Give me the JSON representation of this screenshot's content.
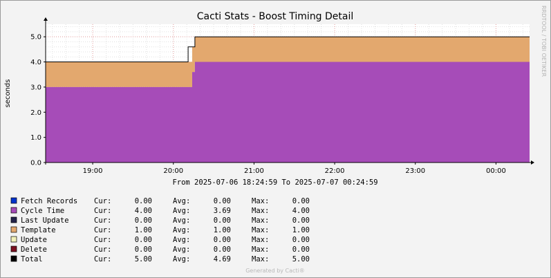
{
  "chart_data": {
    "type": "area",
    "title": "Cacti Stats - Boost Timing Detail",
    "ylabel": "seconds",
    "ylim": [
      0,
      5.5
    ],
    "yticks": [
      "0.0",
      "1.0",
      "2.0",
      "3.0",
      "4.0",
      "5.0"
    ],
    "xticks": [
      "19:00",
      "20:00",
      "21:00",
      "22:00",
      "23:00",
      "00:00"
    ],
    "x_range": [
      "2025-07-06 18:24:59",
      "2025-07-07 00:24:59"
    ],
    "grid": true,
    "date_range": "From 2025-07-06 18:24:59 To 2025-07-07 00:24:59",
    "watermark": "RRDTOOL / TOBI OETIKER",
    "footer": "Generated by Cacti®",
    "series": [
      {
        "name": "Cycle Time",
        "color": "#a64cb8",
        "x": [
          "18:24:59",
          "20:09",
          "20:11",
          "20:14",
          "20:16",
          "00:24:59"
        ],
        "values": [
          3.0,
          3.0,
          3.0,
          3.6,
          4.0,
          4.0
        ]
      },
      {
        "name": "Template",
        "color": "#e3a86e",
        "x": [
          "18:24:59",
          "20:09",
          "20:11",
          "20:14",
          "20:16",
          "00:24:59"
        ],
        "values": [
          1.0,
          1.0,
          1.0,
          1.0,
          1.0,
          1.0
        ]
      },
      {
        "name": "Total",
        "color": "#000000",
        "x": [
          "18:24:59",
          "20:09",
          "20:11",
          "20:14",
          "20:16",
          "00:24:59"
        ],
        "values": [
          4.0,
          4.0,
          4.6,
          4.6,
          5.0,
          5.0
        ]
      }
    ],
    "legend": [
      {
        "name": "Fetch Records",
        "color": "#0033cc",
        "cur_label": "Cur:",
        "cur": "0.00",
        "avg_label": "Avg:",
        "avg": "0.00",
        "max_label": "Max:",
        "max": "0.00"
      },
      {
        "name": "Cycle Time",
        "color": "#a64cb8",
        "cur_label": "Cur:",
        "cur": "4.00",
        "avg_label": "Avg:",
        "avg": "3.69",
        "max_label": "Max:",
        "max": "4.00"
      },
      {
        "name": "Last Update",
        "color": "#23234a",
        "cur_label": "Cur:",
        "cur": "0.00",
        "avg_label": "Avg:",
        "avg": "0.00",
        "max_label": "Max:",
        "max": "0.00"
      },
      {
        "name": "Template",
        "color": "#e3a86e",
        "cur_label": "Cur:",
        "cur": "1.00",
        "avg_label": "Avg:",
        "avg": "1.00",
        "max_label": "Max:",
        "max": "1.00"
      },
      {
        "name": "Update",
        "color": "#f2f0b8",
        "cur_label": "Cur:",
        "cur": "0.00",
        "avg_label": "Avg:",
        "avg": "0.00",
        "max_label": "Max:",
        "max": "0.00"
      },
      {
        "name": "Delete",
        "color": "#7a1020",
        "cur_label": "Cur:",
        "cur": "0.00",
        "avg_label": "Avg:",
        "avg": "0.00",
        "max_label": "Max:",
        "max": "0.00"
      },
      {
        "name": "Total",
        "color": "#000000",
        "cur_label": "Cur:",
        "cur": "5.00",
        "avg_label": "Avg:",
        "avg": "4.69",
        "max_label": "Max:",
        "max": "5.00"
      }
    ]
  }
}
